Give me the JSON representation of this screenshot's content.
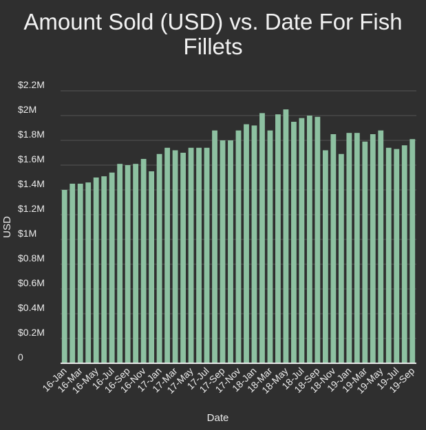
{
  "colors": {
    "background": "#2f2f2f",
    "bar": "#8dc1a1",
    "text": "#ececec",
    "grid": "#555555"
  },
  "chart_data": {
    "type": "bar",
    "title_lines": [
      "Amount Sold (USD) vs. Date For Fish",
      "Fillets"
    ],
    "xlabel": "Date",
    "ylabel": "USD",
    "ylim": [
      0,
      2200000
    ],
    "grid": true,
    "y_ticks": [
      {
        "value": 0,
        "label": "0"
      },
      {
        "value": 200000,
        "label": "$0.2M"
      },
      {
        "value": 400000,
        "label": "$0.4M"
      },
      {
        "value": 600000,
        "label": "$0.6M"
      },
      {
        "value": 800000,
        "label": "$0.8M"
      },
      {
        "value": 1000000,
        "label": "$1M"
      },
      {
        "value": 1200000,
        "label": "$1.2M"
      },
      {
        "value": 1400000,
        "label": "$1.4M"
      },
      {
        "value": 1600000,
        "label": "$1.6M"
      },
      {
        "value": 1800000,
        "label": "$1.8M"
      },
      {
        "value": 2000000,
        "label": "$2M"
      },
      {
        "value": 2200000,
        "label": "$2.2M"
      }
    ],
    "x_tick_labels": [
      {
        "index": 0,
        "label": "16-Jan"
      },
      {
        "index": 2,
        "label": "16-Mar"
      },
      {
        "index": 4,
        "label": "16-May"
      },
      {
        "index": 6,
        "label": "16-Jul"
      },
      {
        "index": 8,
        "label": "16-Sep"
      },
      {
        "index": 10,
        "label": "16-Nov"
      },
      {
        "index": 12,
        "label": "17-Jan"
      },
      {
        "index": 14,
        "label": "17-Mar"
      },
      {
        "index": 16,
        "label": "17-May"
      },
      {
        "index": 18,
        "label": "17-Jul"
      },
      {
        "index": 20,
        "label": "17-Sep"
      },
      {
        "index": 22,
        "label": "17-Nov"
      },
      {
        "index": 24,
        "label": "18-Jan"
      },
      {
        "index": 26,
        "label": "18-Mar"
      },
      {
        "index": 28,
        "label": "18-May"
      },
      {
        "index": 30,
        "label": "18-Jul"
      },
      {
        "index": 32,
        "label": "18-Sep"
      },
      {
        "index": 34,
        "label": "18-Nov"
      },
      {
        "index": 36,
        "label": "19-Jan"
      },
      {
        "index": 38,
        "label": "19-Mar"
      },
      {
        "index": 40,
        "label": "19-May"
      },
      {
        "index": 42,
        "label": "19-Jul"
      },
      {
        "index": 44,
        "label": "19-Sep"
      }
    ],
    "categories": [
      "16-Jan",
      "16-Feb",
      "16-Mar",
      "16-Apr",
      "16-May",
      "16-Jun",
      "16-Jul",
      "16-Aug",
      "16-Sep",
      "16-Oct",
      "16-Nov",
      "16-Dec",
      "17-Jan",
      "17-Feb",
      "17-Mar",
      "17-Apr",
      "17-May",
      "17-Jun",
      "17-Jul",
      "17-Aug",
      "17-Sep",
      "17-Oct",
      "17-Nov",
      "17-Dec",
      "18-Jan",
      "18-Feb",
      "18-Mar",
      "18-Apr",
      "18-May",
      "18-Jun",
      "18-Jul",
      "18-Aug",
      "18-Sep",
      "18-Oct",
      "18-Nov",
      "18-Dec",
      "19-Jan",
      "19-Feb",
      "19-Mar",
      "19-Apr",
      "19-May",
      "19-Jun",
      "19-Jul",
      "19-Aug",
      "19-Sep"
    ],
    "values": [
      1400000,
      1450000,
      1450000,
      1460000,
      1500000,
      1510000,
      1540000,
      1610000,
      1600000,
      1610000,
      1650000,
      1550000,
      1690000,
      1740000,
      1720000,
      1700000,
      1740000,
      1740000,
      1740000,
      1880000,
      1800000,
      1800000,
      1880000,
      1930000,
      1920000,
      2020000,
      1880000,
      2010000,
      2050000,
      1950000,
      1980000,
      2000000,
      1990000,
      1720000,
      1850000,
      1690000,
      1860000,
      1860000,
      1790000,
      1850000,
      1880000,
      1740000,
      1730000,
      1760000,
      1810000
    ]
  }
}
